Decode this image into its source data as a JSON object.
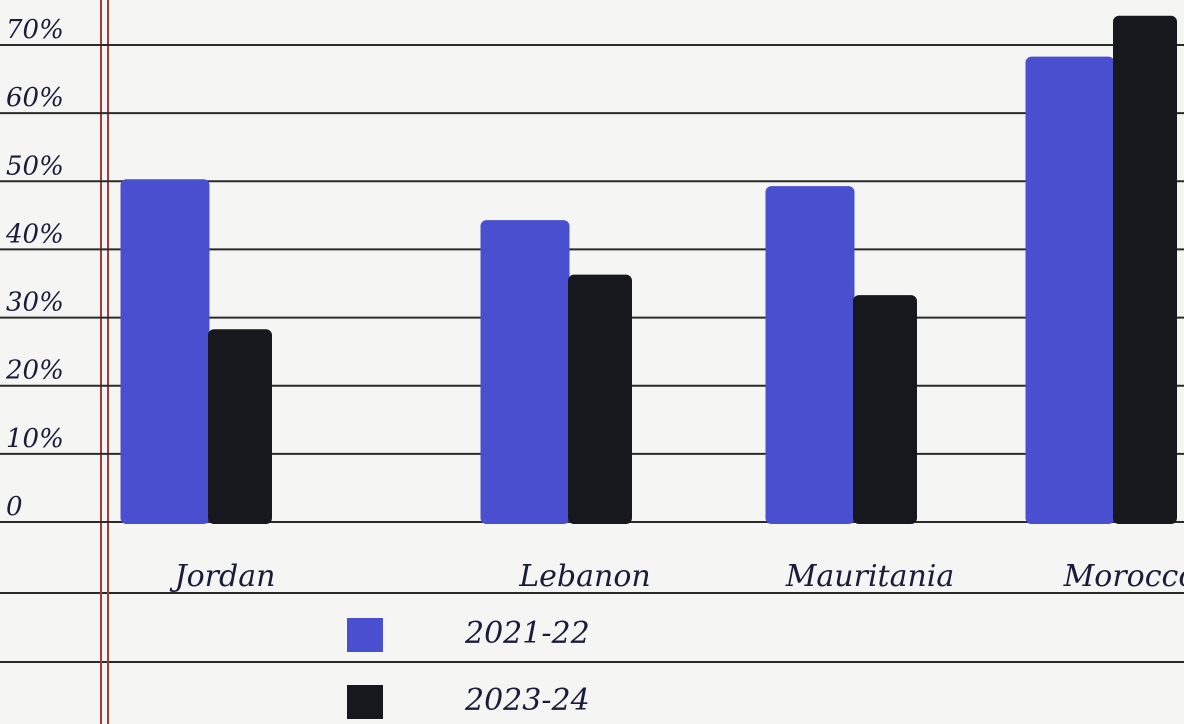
{
  "chart_data": {
    "type": "bar",
    "categories": [
      "Jordan",
      "Lebanon",
      "Mauritania",
      "Morocco"
    ],
    "series": [
      {
        "name": "2021-22",
        "color": "#4a4fd0",
        "values": [
          50,
          44,
          49,
          68
        ]
      },
      {
        "name": "2023-24",
        "color": "#16181e",
        "values": [
          28,
          36,
          33,
          74
        ]
      }
    ],
    "ylim": [
      0,
      76
    ],
    "yticks": [
      0,
      {
        "value": 10,
        "label": "10%"
      },
      {
        "value": 20,
        "label": "20%"
      },
      {
        "value": 30,
        "label": "30%"
      },
      {
        "value": 40,
        "label": "40%"
      },
      {
        "value": 50,
        "label": "50%"
      },
      {
        "value": 60,
        "label": "60%"
      },
      {
        "value": 70,
        "label": "70%"
      }
    ],
    "grid": true
  }
}
